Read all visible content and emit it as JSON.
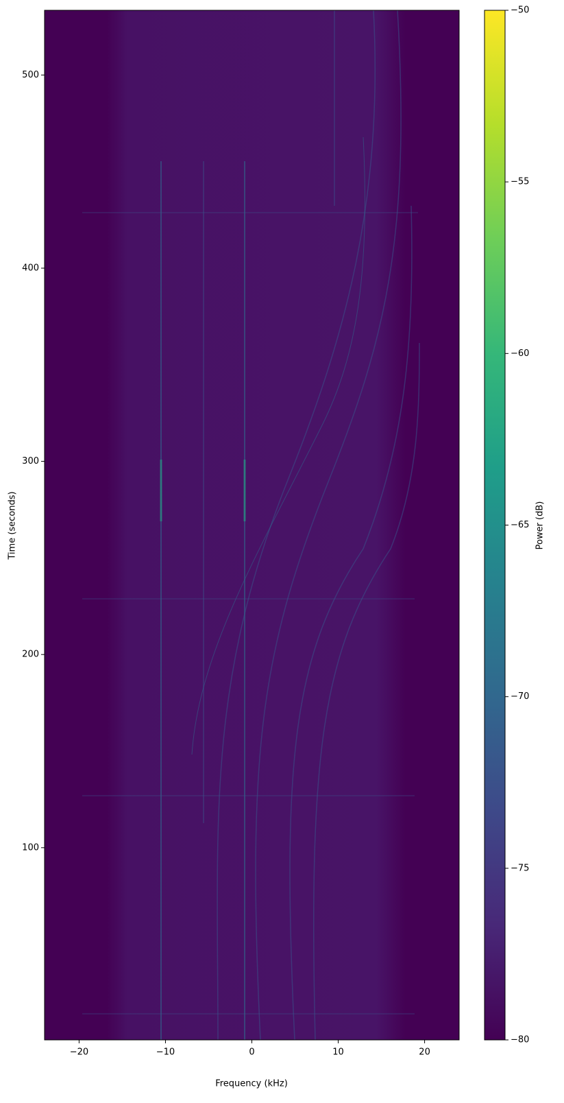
{
  "chart_data": {
    "type": "spectrogram",
    "xlabel": "Frequency (kHz)",
    "ylabel": "Time (seconds)",
    "xlim": [
      -24,
      24
    ],
    "ylim": [
      0.5,
      533.5
    ],
    "xticks": [
      {
        "value": -20,
        "label": "−20"
      },
      {
        "value": -10,
        "label": "−10"
      },
      0,
      10,
      20
    ],
    "yticks": [
      100,
      200,
      300,
      400,
      500
    ],
    "colorbar": {
      "label": "Power (dB)",
      "colormap": "viridis",
      "lim": [
        -80,
        -50
      ],
      "ticks": [
        {
          "value": -80,
          "label": "−80"
        },
        {
          "value": -75,
          "label": "−75"
        },
        {
          "value": -70,
          "label": "−70"
        },
        {
          "value": -65,
          "label": "−65"
        },
        {
          "value": -60,
          "label": "−60"
        },
        {
          "value": -55,
          "label": "−55"
        },
        {
          "value": -50,
          "label": "−50"
        }
      ]
    }
  }
}
